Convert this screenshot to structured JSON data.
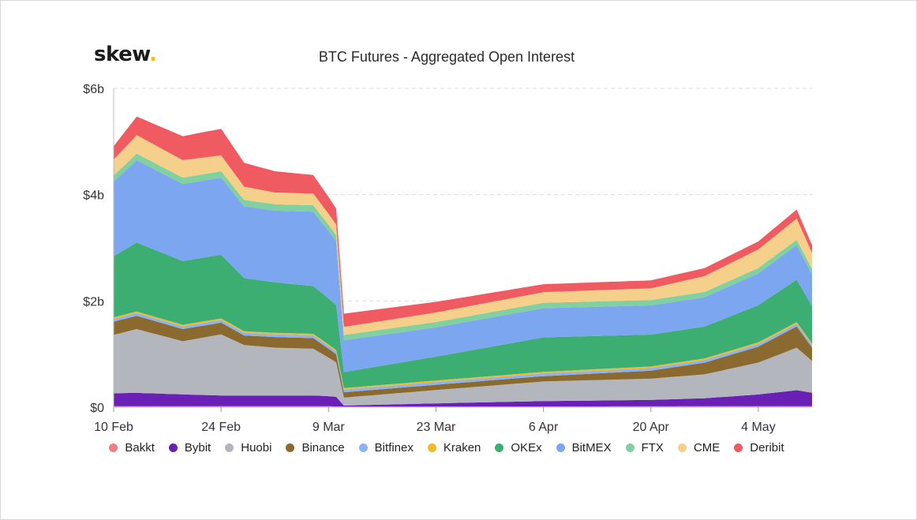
{
  "logo": {
    "text": "skew",
    "dot": "."
  },
  "chart_data": {
    "type": "area",
    "stacked": true,
    "title": "BTC Futures - Aggregated Open Interest",
    "xlabel": "",
    "ylabel": "",
    "y_unit": "USD billions",
    "ylim": [
      0,
      6
    ],
    "y_ticks": [
      {
        "value": 0,
        "label": "$0"
      },
      {
        "value": 2,
        "label": "$2b"
      },
      {
        "value": 4,
        "label": "$4b"
      },
      {
        "value": 6,
        "label": "$6b"
      }
    ],
    "x_ticks": [
      "10 Feb",
      "24 Feb",
      "9 Mar",
      "23 Mar",
      "6 Apr",
      "20 Apr",
      "4 May"
    ],
    "x_start": "10 Feb",
    "x_end": "11 May",
    "grid": "horizontal dashed",
    "legend_position": "bottom",
    "series_order_bottom_to_top": [
      "Bakkt",
      "Bybit",
      "Huobi",
      "Binance",
      "Bitfinex",
      "Kraken",
      "OKEx",
      "BitMEX",
      "FTX",
      "CME",
      "Deribit"
    ],
    "series": [
      {
        "name": "Bakkt",
        "color": "#f08080",
        "points": [
          [
            "10 Feb",
            0.02
          ],
          [
            "9 Mar",
            0.02
          ],
          [
            "11 Mar",
            0.01
          ],
          [
            "11 May",
            0.02
          ]
        ]
      },
      {
        "name": "Bybit",
        "color": "#6a1fb5",
        "points": [
          [
            "10 Feb",
            0.24
          ],
          [
            "13 Feb",
            0.25
          ],
          [
            "19 Feb",
            0.22
          ],
          [
            "24 Feb",
            0.2
          ],
          [
            "2 Mar",
            0.2
          ],
          [
            "7 Mar",
            0.2
          ],
          [
            "10 Mar",
            0.18
          ],
          [
            "11 Mar",
            0.02
          ],
          [
            "23 Mar",
            0.06
          ],
          [
            "6 Apr",
            0.1
          ],
          [
            "20 Apr",
            0.12
          ],
          [
            "27 Apr",
            0.15
          ],
          [
            "4 May",
            0.22
          ],
          [
            "9 May",
            0.3
          ],
          [
            "11 May",
            0.25
          ]
        ]
      },
      {
        "name": "Huobi",
        "color": "#b3b7bd",
        "points": [
          [
            "10 Feb",
            1.1
          ],
          [
            "13 Feb",
            1.2
          ],
          [
            "19 Feb",
            1.0
          ],
          [
            "24 Feb",
            1.15
          ],
          [
            "27 Feb",
            0.95
          ],
          [
            "2 Mar",
            0.9
          ],
          [
            "7 Mar",
            0.88
          ],
          [
            "10 Mar",
            0.65
          ],
          [
            "11 Mar",
            0.15
          ],
          [
            "23 Mar",
            0.25
          ],
          [
            "6 Apr",
            0.37
          ],
          [
            "20 Apr",
            0.4
          ],
          [
            "27 Apr",
            0.45
          ],
          [
            "4 May",
            0.6
          ],
          [
            "9 May",
            0.8
          ],
          [
            "11 May",
            0.6
          ]
        ]
      },
      {
        "name": "Binance",
        "color": "#8b6a2f",
        "points": [
          [
            "10 Feb",
            0.25
          ],
          [
            "13 Feb",
            0.25
          ],
          [
            "19 Feb",
            0.23
          ],
          [
            "24 Feb",
            0.22
          ],
          [
            "27 Feb",
            0.18
          ],
          [
            "2 Mar",
            0.2
          ],
          [
            "7 Mar",
            0.2
          ],
          [
            "10 Mar",
            0.15
          ],
          [
            "11 Mar",
            0.1
          ],
          [
            "23 Mar",
            0.1
          ],
          [
            "6 Apr",
            0.1
          ],
          [
            "20 Apr",
            0.15
          ],
          [
            "27 Apr",
            0.22
          ],
          [
            "4 May",
            0.3
          ],
          [
            "9 May",
            0.4
          ],
          [
            "11 May",
            0.25
          ]
        ]
      },
      {
        "name": "Bitfinex",
        "color": "#8bb3f2",
        "points": [
          [
            "10 Feb",
            0.05
          ],
          [
            "11 May",
            0.05
          ]
        ]
      },
      {
        "name": "Kraken",
        "color": "#f2b92b",
        "points": [
          [
            "10 Feb",
            0.03
          ],
          [
            "11 May",
            0.03
          ]
        ]
      },
      {
        "name": "OKEx",
        "color": "#3dae72",
        "points": [
          [
            "10 Feb",
            1.15
          ],
          [
            "13 Feb",
            1.3
          ],
          [
            "19 Feb",
            1.2
          ],
          [
            "24 Feb",
            1.2
          ],
          [
            "27 Feb",
            1.0
          ],
          [
            "2 Mar",
            0.95
          ],
          [
            "7 Mar",
            0.9
          ],
          [
            "10 Mar",
            0.85
          ],
          [
            "11 Mar",
            0.3
          ],
          [
            "23 Mar",
            0.45
          ],
          [
            "6 Apr",
            0.65
          ],
          [
            "20 Apr",
            0.6
          ],
          [
            "27 Apr",
            0.6
          ],
          [
            "4 May",
            0.7
          ],
          [
            "9 May",
            0.8
          ],
          [
            "11 May",
            0.7
          ]
        ]
      },
      {
        "name": "BitMEX",
        "color": "#7da6f0",
        "points": [
          [
            "10 Feb",
            1.4
          ],
          [
            "13 Feb",
            1.55
          ],
          [
            "19 Feb",
            1.45
          ],
          [
            "24 Feb",
            1.45
          ],
          [
            "27 Feb",
            1.35
          ],
          [
            "2 Mar",
            1.35
          ],
          [
            "7 Mar",
            1.4
          ],
          [
            "10 Mar",
            1.2
          ],
          [
            "11 Mar",
            0.6
          ],
          [
            "23 Mar",
            0.55
          ],
          [
            "6 Apr",
            0.55
          ],
          [
            "20 Apr",
            0.55
          ],
          [
            "27 Apr",
            0.55
          ],
          [
            "4 May",
            0.6
          ],
          [
            "9 May",
            0.65
          ],
          [
            "11 May",
            0.6
          ]
        ]
      },
      {
        "name": "FTX",
        "color": "#80d0a0",
        "points": [
          [
            "10 Feb",
            0.12
          ],
          [
            "9 Mar",
            0.12
          ],
          [
            "11 Mar",
            0.1
          ],
          [
            "11 May",
            0.1
          ]
        ]
      },
      {
        "name": "CME",
        "color": "#f5d08a",
        "points": [
          [
            "10 Feb",
            0.3
          ],
          [
            "13 Feb",
            0.35
          ],
          [
            "19 Feb",
            0.33
          ],
          [
            "24 Feb",
            0.3
          ],
          [
            "27 Feb",
            0.25
          ],
          [
            "2 Mar",
            0.22
          ],
          [
            "7 Mar",
            0.22
          ],
          [
            "10 Mar",
            0.2
          ],
          [
            "11 Mar",
            0.15
          ],
          [
            "23 Mar",
            0.18
          ],
          [
            "6 Apr",
            0.2
          ],
          [
            "20 Apr",
            0.22
          ],
          [
            "27 Apr",
            0.3
          ],
          [
            "4 May",
            0.35
          ],
          [
            "9 May",
            0.4
          ],
          [
            "11 May",
            0.3
          ]
        ]
      },
      {
        "name": "Deribit",
        "color": "#ef5b61",
        "points": [
          [
            "10 Feb",
            0.25
          ],
          [
            "13 Feb",
            0.35
          ],
          [
            "19 Feb",
            0.45
          ],
          [
            "24 Feb",
            0.5
          ],
          [
            "27 Feb",
            0.45
          ],
          [
            "2 Mar",
            0.4
          ],
          [
            "7 Mar",
            0.35
          ],
          [
            "10 Mar",
            0.3
          ],
          [
            "11 Mar",
            0.25
          ],
          [
            "23 Mar",
            0.2
          ],
          [
            "6 Apr",
            0.15
          ],
          [
            "20 Apr",
            0.15
          ],
          [
            "27 Apr",
            0.15
          ],
          [
            "4 May",
            0.15
          ],
          [
            "9 May",
            0.17
          ],
          [
            "11 May",
            0.15
          ]
        ]
      }
    ]
  }
}
